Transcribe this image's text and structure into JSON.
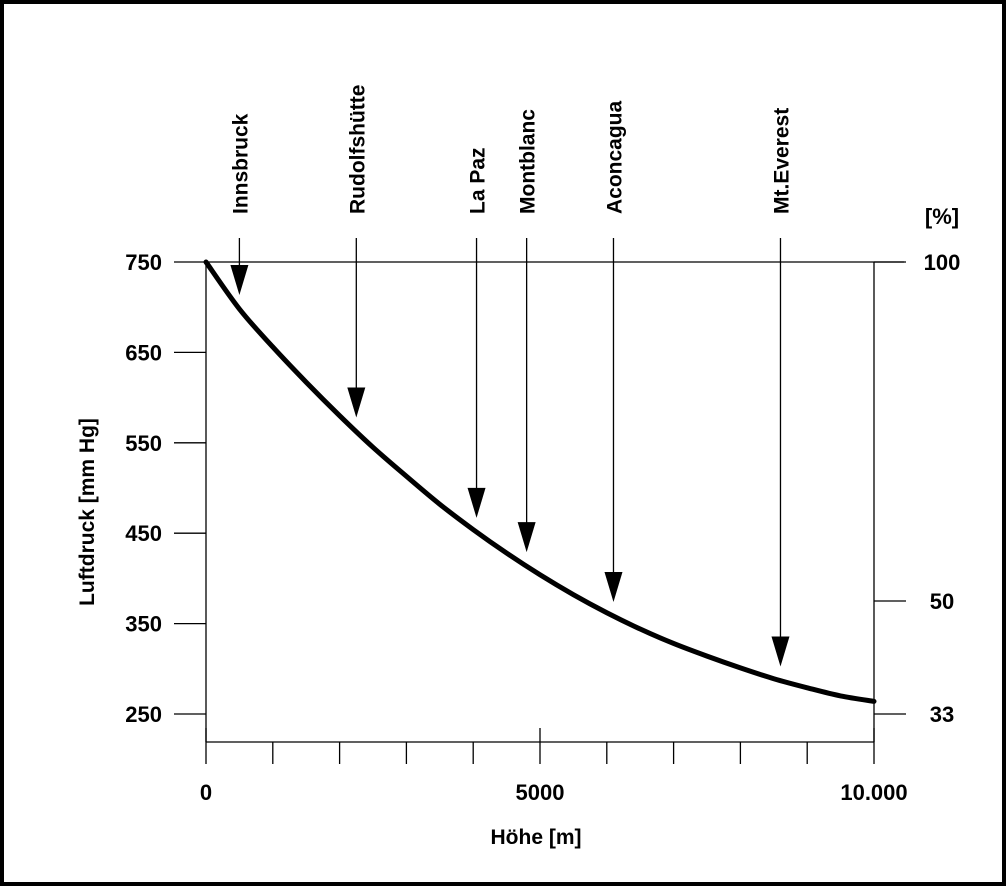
{
  "colors": {
    "ink": "#000000",
    "background": "#ffffff"
  },
  "chart_data": {
    "type": "line",
    "xlabel": "Höhe  [m]",
    "ylabel": "Luftdruck  [mm Hg]",
    "y2label": "[%]",
    "xlim": [
      0,
      10000
    ],
    "ylim": [
      210,
      750
    ],
    "x_tick_labels": [
      {
        "value": 0,
        "label": "0"
      },
      {
        "value": 5000,
        "label": "5000"
      },
      {
        "value": 10000,
        "label": "10.000"
      }
    ],
    "x_minor_ticks": [
      1000,
      2000,
      3000,
      4000,
      6000,
      7000,
      8000,
      9000
    ],
    "y_ticks": [
      {
        "value": 750,
        "label": "750"
      },
      {
        "value": 650,
        "label": "650"
      },
      {
        "value": 550,
        "label": "550"
      },
      {
        "value": 450,
        "label": "450"
      },
      {
        "value": 350,
        "label": "350"
      },
      {
        "value": 250,
        "label": "250"
      }
    ],
    "y2_ticks": [
      {
        "value": 750,
        "label": "100"
      },
      {
        "value": 375,
        "label": "50"
      },
      {
        "value": 250,
        "label": "33"
      }
    ],
    "series": [
      {
        "x": [
          0,
          500,
          1000,
          1500,
          2000,
          2500,
          3000,
          3500,
          4000,
          4500,
          5000,
          5500,
          6000,
          6500,
          7000,
          7500,
          8000,
          8500,
          9000,
          9500,
          10000
        ],
        "values": [
          750,
          698,
          656,
          617,
          580,
          545,
          513,
          482,
          454,
          428,
          404,
          382,
          362,
          344,
          328,
          314,
          301,
          289,
          279,
          270,
          264
        ]
      }
    ],
    "annotations": [
      {
        "label": "Innsbruck",
        "x": 500
      },
      {
        "label": "Rudolfshütte",
        "x": 2250
      },
      {
        "label": "La Paz",
        "x": 4050
      },
      {
        "label": "Montblanc",
        "x": 4800
      },
      {
        "label": "Aconcagua",
        "x": 6100
      },
      {
        "label": "Mt.Everest",
        "x": 8600
      }
    ],
    "grid": false
  }
}
